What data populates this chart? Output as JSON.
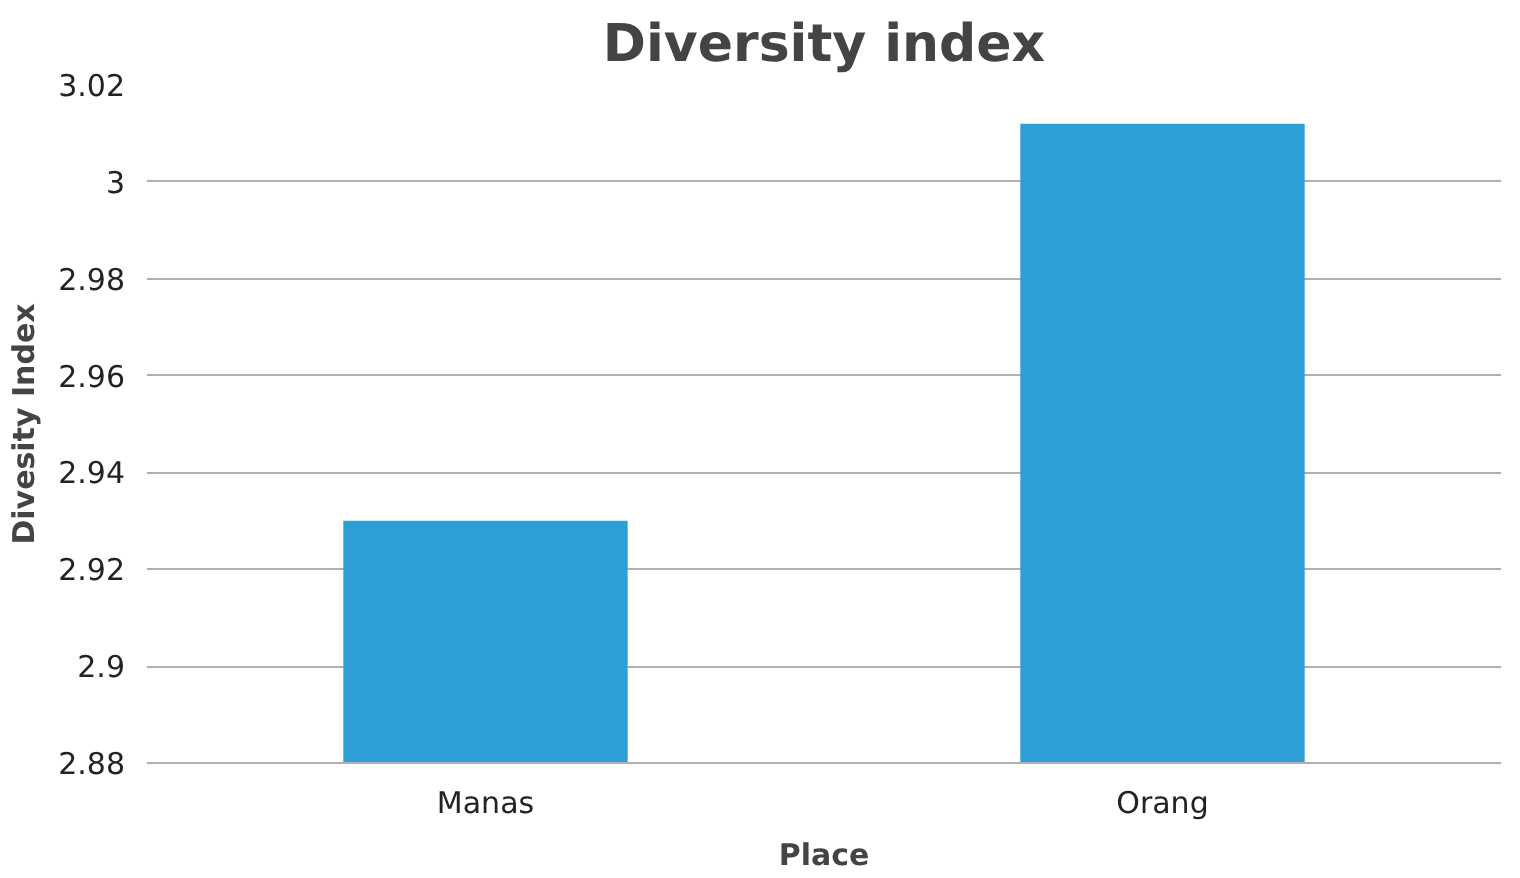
{
  "chart_data": {
    "type": "bar",
    "title": "Diversity index",
    "xlabel": "Place",
    "ylabel": "Divesity Index",
    "categories": [
      "Manas",
      "Orang"
    ],
    "values": [
      2.93,
      3.012
    ],
    "color": "#2e9fd4",
    "ylim": [
      2.88,
      3.02
    ],
    "yticks": [
      2.88,
      2.9,
      2.92,
      2.94,
      2.96,
      2.98,
      3,
      3.02
    ],
    "grid": "y"
  }
}
